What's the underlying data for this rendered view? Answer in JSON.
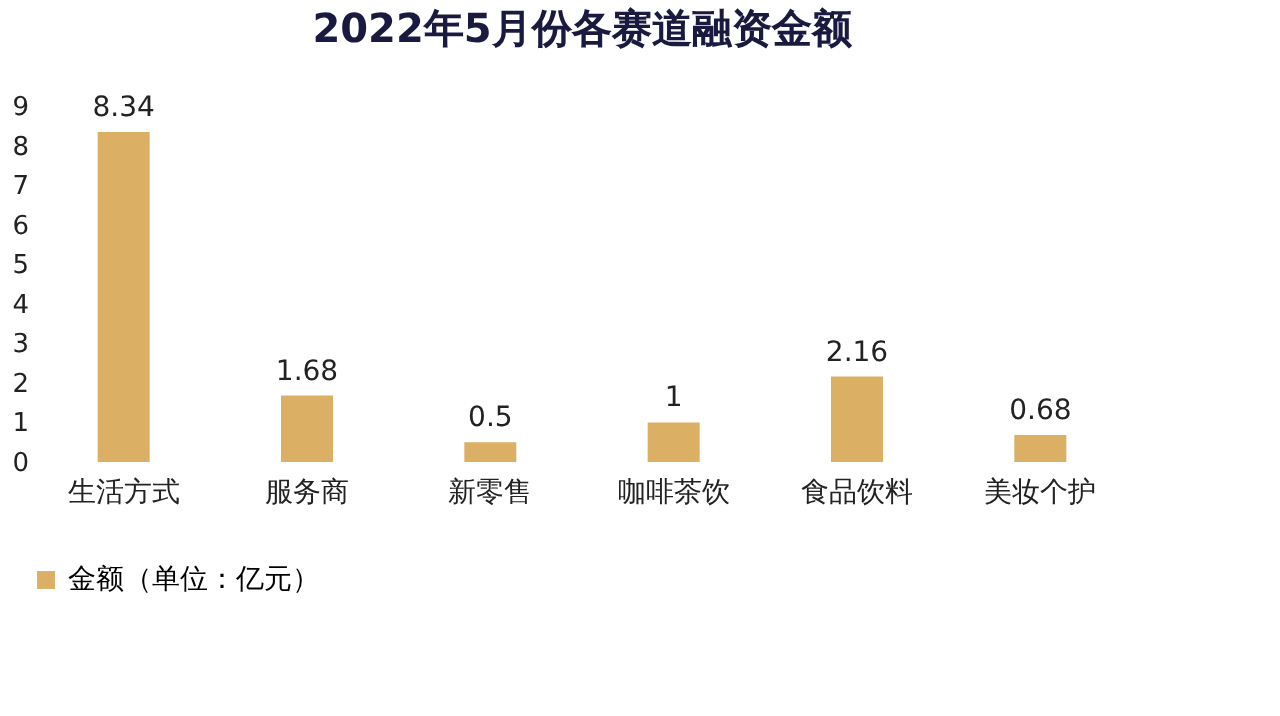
{
  "chart_data": {
    "type": "bar",
    "title": "2022年5月份各赛道融资金额",
    "categories": [
      "生活方式",
      "服务商",
      "新零售",
      "咖啡茶饮",
      "食品饮料",
      "美妆个护"
    ],
    "series": [
      {
        "name": "金额（单位：亿元）",
        "color": "#dcb064",
        "values": [
          8.34,
          1.68,
          0.5,
          1,
          2.16,
          0.68
        ]
      }
    ],
    "ylim": [
      0,
      9
    ],
    "yticks": [
      0,
      1,
      2,
      3,
      4,
      5,
      6,
      7,
      8,
      9
    ],
    "data_labels": true,
    "grid": false,
    "legend": "bottom"
  }
}
